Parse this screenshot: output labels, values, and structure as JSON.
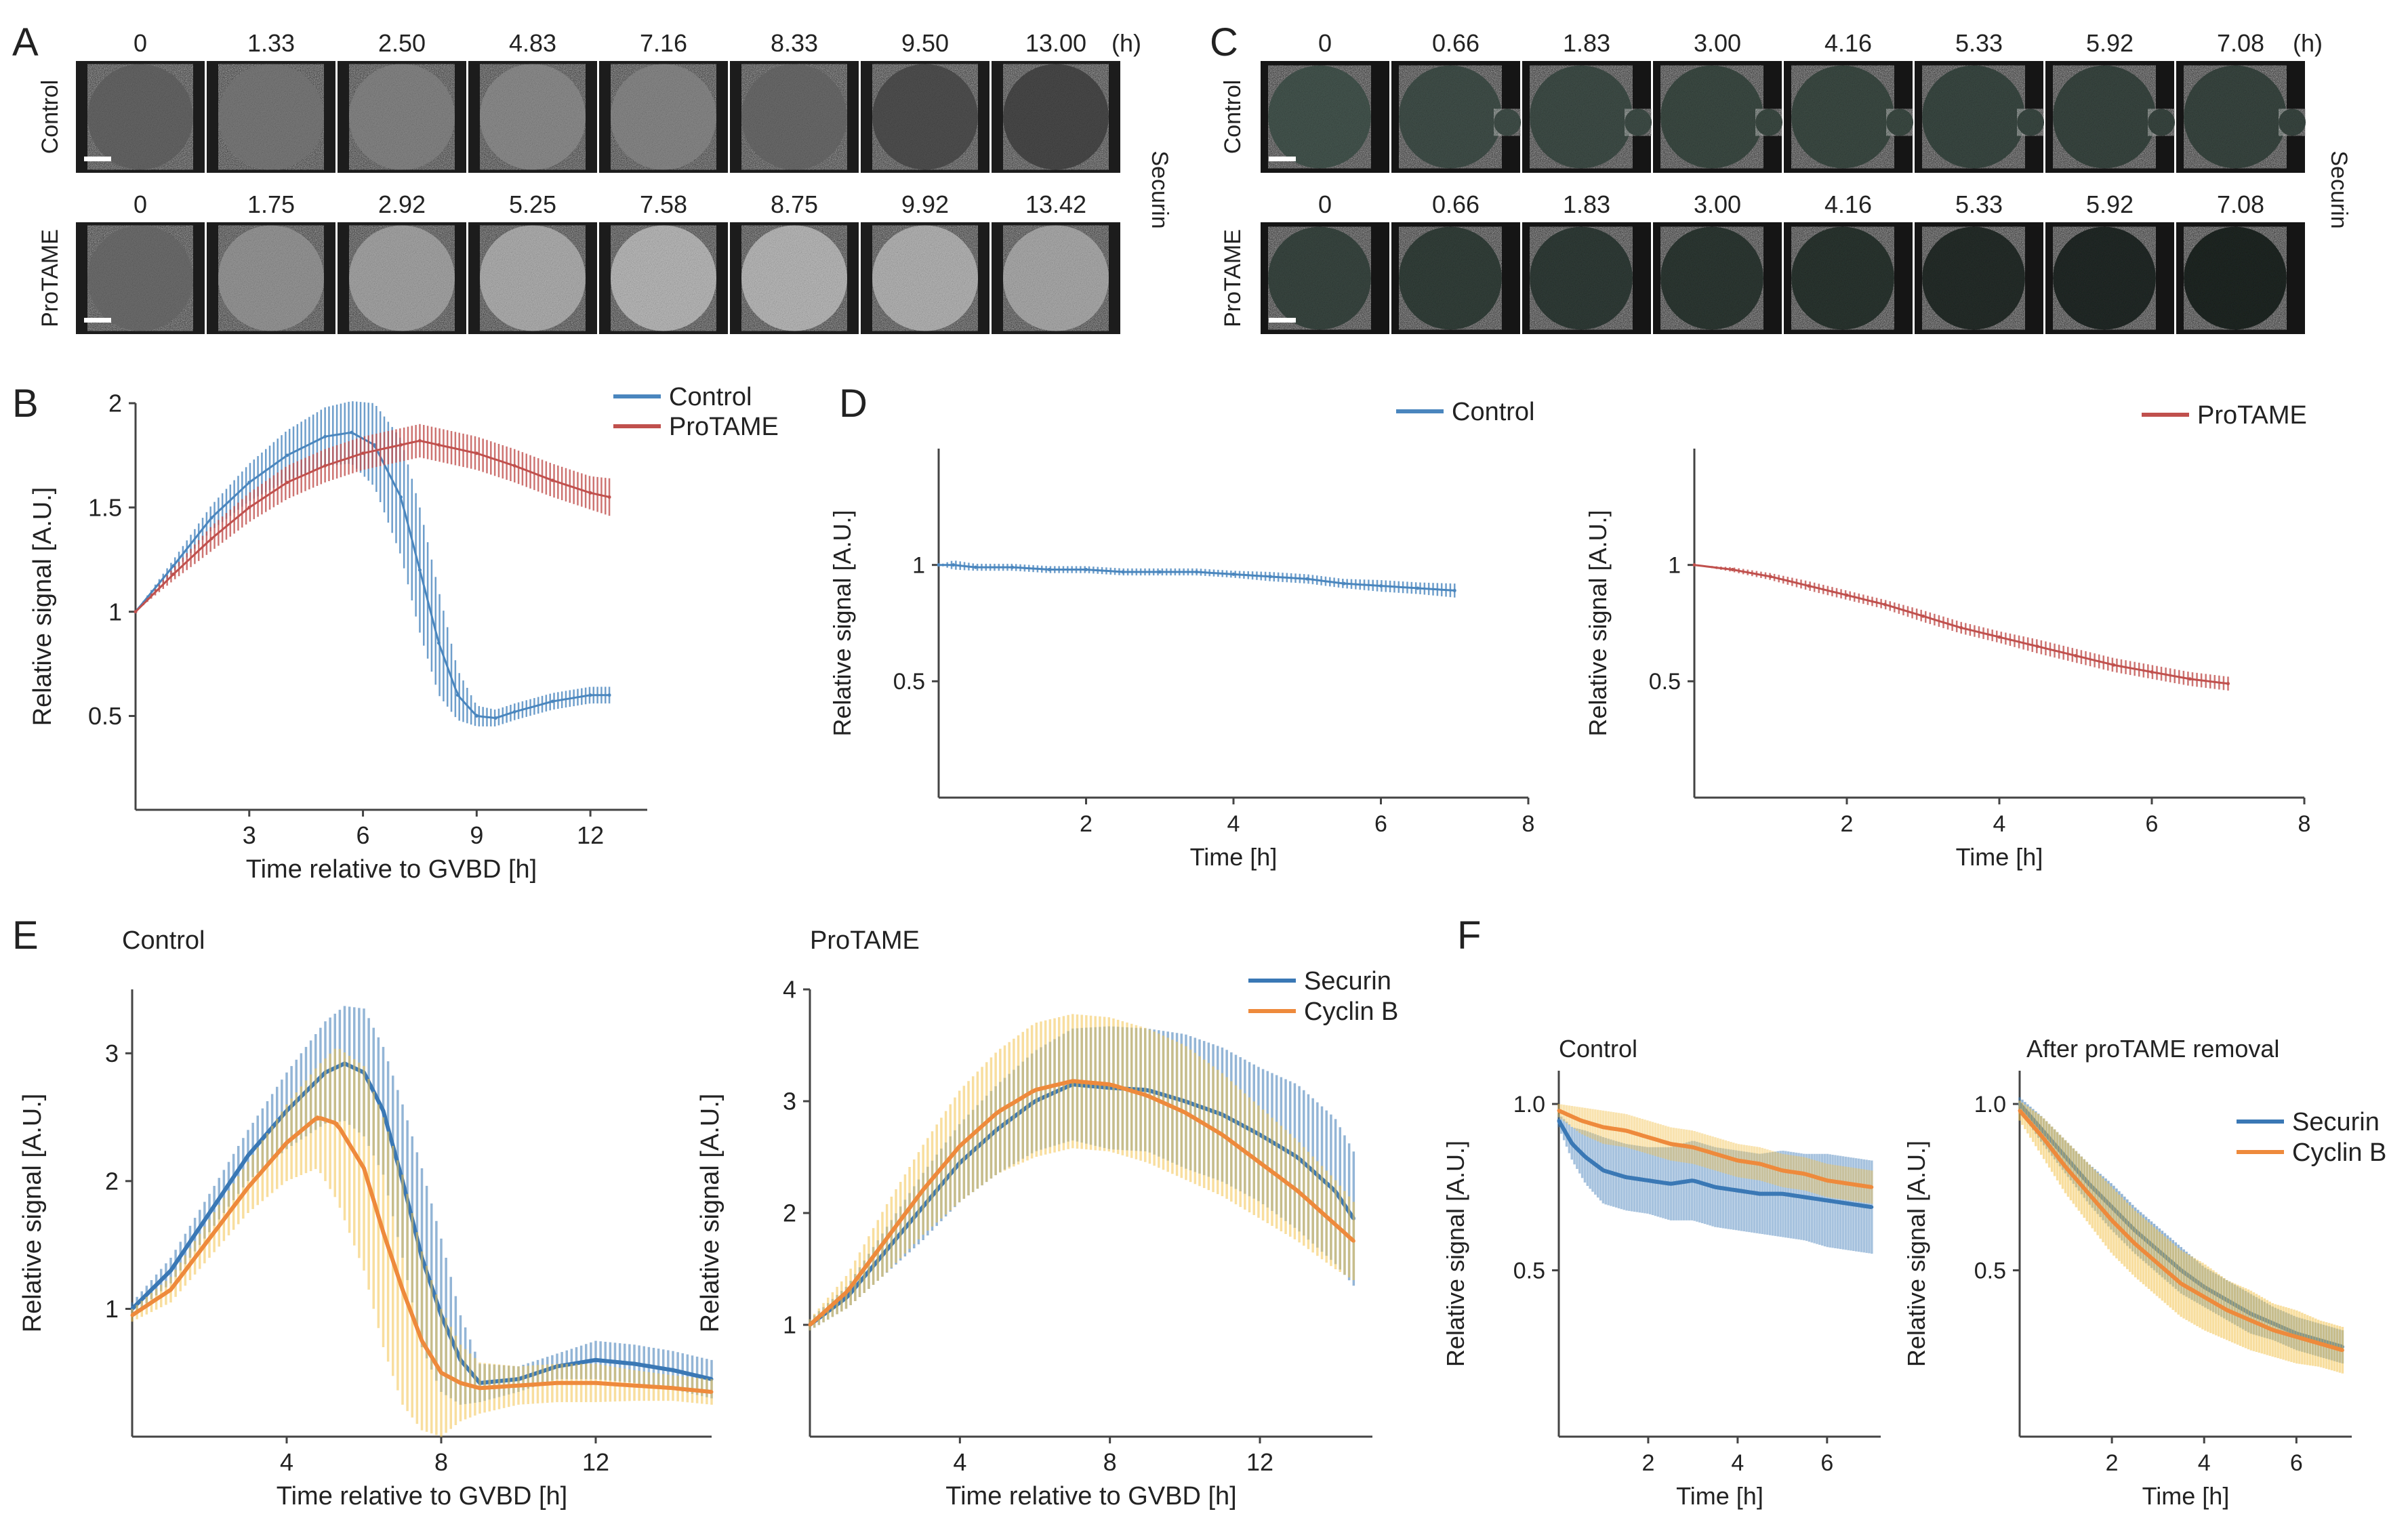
{
  "figure": {
    "panel_letters": [
      "A",
      "B",
      "C",
      "D",
      "E",
      "F"
    ],
    "colors": {
      "control": "#4a86be",
      "protame": "#c0504d",
      "securin": "#3a78b5",
      "cyclin": "#ee8a3c",
      "cyclin_band": "#f2c24e",
      "axis": "#444444",
      "cell_bg": "#1c1c1c",
      "cell_bg_c": "#151515"
    }
  },
  "panel_a": {
    "unit": "(h)",
    "side_label": "Securin",
    "rows": [
      {
        "label": "Control",
        "times": [
          "0",
          "1.33",
          "2.50",
          "4.83",
          "7.16",
          "8.33",
          "9.50",
          "13.00"
        ],
        "brightness": [
          0.42,
          0.5,
          0.55,
          0.58,
          0.56,
          0.44,
          0.33,
          0.3
        ]
      },
      {
        "label": "ProTAME",
        "times": [
          "0",
          "1.75",
          "2.92",
          "5.25",
          "7.58",
          "8.75",
          "9.92",
          "13.42"
        ],
        "brightness": [
          0.45,
          0.62,
          0.68,
          0.72,
          0.76,
          0.76,
          0.74,
          0.7
        ]
      }
    ]
  },
  "panel_c": {
    "unit": "(h)",
    "side_label": "Securin",
    "rows": [
      {
        "label": "Control",
        "times": [
          "0",
          "0.66",
          "1.83",
          "3.00",
          "4.16",
          "5.33",
          "5.92",
          "7.08"
        ],
        "brightness": [
          0.48,
          0.45,
          0.44,
          0.42,
          0.42,
          0.41,
          0.4,
          0.4
        ]
      },
      {
        "label": "ProTAME",
        "times": [
          "0",
          "0.66",
          "1.83",
          "3.00",
          "4.16",
          "5.33",
          "5.92",
          "7.08"
        ],
        "brightness": [
          0.4,
          0.36,
          0.34,
          0.32,
          0.3,
          0.26,
          0.24,
          0.22
        ]
      }
    ]
  },
  "chart_data": [
    {
      "panel": "B",
      "type": "line",
      "title": "",
      "xlabel": "Time relative to GVBD [h]",
      "ylabel": "Relative signal [A.U.]",
      "xlim": [
        0,
        13.5
      ],
      "ylim": [
        0.05,
        2
      ],
      "xticks": [
        3,
        6,
        9,
        12
      ],
      "yticks": [
        0.5,
        1,
        1.5,
        2
      ],
      "legend": "top-right",
      "series": [
        {
          "name": "Control",
          "color": "#4a86be",
          "x": [
            0,
            1,
            2,
            3,
            4,
            5,
            5.7,
            6.3,
            7,
            7.5,
            8,
            8.5,
            9,
            9.5,
            10,
            11,
            12,
            12.5
          ],
          "y": [
            1,
            1.22,
            1.45,
            1.62,
            1.75,
            1.84,
            1.86,
            1.8,
            1.55,
            1.2,
            0.85,
            0.6,
            0.5,
            0.49,
            0.52,
            0.57,
            0.6,
            0.6
          ],
          "err": [
            0,
            0.03,
            0.06,
            0.09,
            0.12,
            0.14,
            0.15,
            0.2,
            0.28,
            0.3,
            0.25,
            0.12,
            0.05,
            0.04,
            0.04,
            0.04,
            0.04,
            0.04
          ]
        },
        {
          "name": "ProTAME",
          "color": "#c0504d",
          "x": [
            0,
            1,
            2,
            3,
            4,
            5,
            6,
            7,
            7.5,
            8,
            9,
            10,
            11,
            12,
            12.5
          ],
          "y": [
            1,
            1.18,
            1.35,
            1.5,
            1.62,
            1.7,
            1.76,
            1.8,
            1.82,
            1.8,
            1.76,
            1.7,
            1.63,
            1.57,
            1.55
          ],
          "err": [
            0,
            0.03,
            0.06,
            0.07,
            0.08,
            0.08,
            0.08,
            0.08,
            0.08,
            0.08,
            0.08,
            0.08,
            0.08,
            0.08,
            0.09
          ]
        }
      ]
    },
    {
      "panel": "D-left",
      "type": "line",
      "title": "",
      "xlabel": "Time [h]",
      "ylabel": "Relative signal [A.U.]",
      "xlim": [
        0,
        8
      ],
      "ylim": [
        0,
        1.5
      ],
      "xticks": [
        2,
        4,
        6,
        8
      ],
      "yticks": [
        0.5,
        1
      ],
      "legend": "top",
      "series": [
        {
          "name": "Control",
          "color": "#4a86be",
          "x": [
            0,
            0.2,
            0.5,
            1,
            1.5,
            2,
            2.5,
            3,
            3.5,
            4,
            4.5,
            5,
            5.5,
            6,
            6.5,
            7
          ],
          "y": [
            1,
            1.0,
            0.99,
            0.99,
            0.98,
            0.98,
            0.97,
            0.97,
            0.97,
            0.96,
            0.95,
            0.94,
            0.92,
            0.91,
            0.9,
            0.89
          ],
          "err": [
            0,
            0.02,
            0.015,
            0.015,
            0.015,
            0.015,
            0.015,
            0.015,
            0.015,
            0.015,
            0.02,
            0.02,
            0.02,
            0.025,
            0.025,
            0.03
          ]
        }
      ]
    },
    {
      "panel": "D-right",
      "type": "line",
      "title": "",
      "xlabel": "Time [h]",
      "ylabel": "Relative signal [A.U.]",
      "xlim": [
        0,
        8
      ],
      "ylim": [
        0,
        1.5
      ],
      "xticks": [
        2,
        4,
        6,
        8
      ],
      "yticks": [
        0.5,
        1
      ],
      "legend": "top-right",
      "series": [
        {
          "name": "ProTAME",
          "color": "#c0504d",
          "x": [
            0,
            0.5,
            1,
            1.5,
            2,
            2.5,
            3,
            3.5,
            4,
            4.5,
            5,
            5.5,
            6,
            6.5,
            7
          ],
          "y": [
            1,
            0.98,
            0.95,
            0.91,
            0.87,
            0.83,
            0.78,
            0.73,
            0.69,
            0.65,
            0.61,
            0.57,
            0.54,
            0.51,
            0.49
          ],
          "err": [
            0,
            0.01,
            0.015,
            0.02,
            0.02,
            0.02,
            0.025,
            0.025,
            0.025,
            0.03,
            0.03,
            0.03,
            0.03,
            0.03,
            0.03
          ]
        }
      ]
    },
    {
      "panel": "E-left",
      "type": "line",
      "title": "Control",
      "xlabel": "Time relative to GVBD [h]",
      "ylabel": "Relative signal [A.U.]",
      "xlim": [
        0,
        15
      ],
      "ylim": [
        0,
        3.5
      ],
      "xticks": [
        4,
        8,
        12
      ],
      "yticks": [
        1,
        2,
        3
      ],
      "legend": "none",
      "series": [
        {
          "name": "Securin",
          "color": "#3a78b5",
          "band_color": "#3a78b5",
          "x": [
            0,
            1,
            2,
            3,
            4,
            5,
            5.5,
            6,
            6.5,
            7,
            7.5,
            8,
            8.5,
            9,
            10,
            11,
            12,
            13,
            14,
            15
          ],
          "y": [
            1,
            1.3,
            1.75,
            2.2,
            2.55,
            2.85,
            2.92,
            2.85,
            2.55,
            2.0,
            1.4,
            0.95,
            0.6,
            0.42,
            0.45,
            0.55,
            0.6,
            0.57,
            0.52,
            0.45
          ],
          "err": [
            0.05,
            0.1,
            0.15,
            0.2,
            0.3,
            0.4,
            0.45,
            0.5,
            0.5,
            0.6,
            0.7,
            0.6,
            0.35,
            0.15,
            0.1,
            0.1,
            0.15,
            0.15,
            0.15,
            0.15
          ]
        },
        {
          "name": "Cyclin B",
          "color": "#ee8a3c",
          "band_color": "#f2c24e",
          "x": [
            0,
            1,
            2,
            3,
            4,
            4.8,
            5.3,
            6,
            6.5,
            7,
            7.5,
            8,
            8.5,
            9,
            10,
            11,
            12,
            13,
            14,
            15
          ],
          "y": [
            0.95,
            1.15,
            1.55,
            1.95,
            2.3,
            2.5,
            2.45,
            2.1,
            1.6,
            1.15,
            0.75,
            0.5,
            0.42,
            0.38,
            0.4,
            0.42,
            0.42,
            0.4,
            0.38,
            0.35
          ],
          "err": [
            0.05,
            0.1,
            0.15,
            0.2,
            0.3,
            0.4,
            0.6,
            0.8,
            0.9,
            0.9,
            0.7,
            0.5,
            0.3,
            0.2,
            0.15,
            0.15,
            0.15,
            0.12,
            0.1,
            0.1
          ]
        }
      ]
    },
    {
      "panel": "E-right",
      "type": "line",
      "title": "ProTAME",
      "xlabel": "Time relative to GVBD [h]",
      "ylabel": "Relative signal [A.U.]",
      "xlim": [
        0,
        15
      ],
      "ylim": [
        0,
        4
      ],
      "xticks": [
        4,
        8,
        12
      ],
      "yticks": [
        1,
        2,
        3,
        4
      ],
      "legend": "top-right",
      "series": [
        {
          "name": "Securin",
          "color": "#3a78b5",
          "band_color": "#3a78b5",
          "x": [
            0,
            1,
            2,
            3,
            4,
            5,
            6,
            7,
            8,
            9,
            10,
            11,
            12,
            13,
            14,
            14.5
          ],
          "y": [
            1,
            1.25,
            1.65,
            2.05,
            2.45,
            2.75,
            3.0,
            3.15,
            3.12,
            3.1,
            3.0,
            2.88,
            2.7,
            2.5,
            2.2,
            1.95
          ],
          "err": [
            0.05,
            0.1,
            0.2,
            0.3,
            0.35,
            0.4,
            0.45,
            0.5,
            0.55,
            0.55,
            0.6,
            0.6,
            0.6,
            0.65,
            0.65,
            0.6
          ]
        },
        {
          "name": "Cyclin B",
          "color": "#ee8a3c",
          "band_color": "#f2c24e",
          "x": [
            0,
            1,
            2,
            3,
            4,
            5,
            6,
            7,
            8,
            9,
            10,
            11,
            12,
            13,
            14,
            14.5
          ],
          "y": [
            1,
            1.3,
            1.75,
            2.2,
            2.6,
            2.9,
            3.1,
            3.18,
            3.15,
            3.05,
            2.9,
            2.7,
            2.45,
            2.2,
            1.9,
            1.75
          ],
          "err": [
            0.05,
            0.15,
            0.3,
            0.4,
            0.5,
            0.55,
            0.6,
            0.6,
            0.6,
            0.6,
            0.6,
            0.55,
            0.5,
            0.45,
            0.4,
            0.35
          ]
        }
      ]
    },
    {
      "panel": "F-left",
      "type": "line",
      "title": "Control",
      "xlabel": "Time [h]",
      "ylabel": "Relative signal [A.U.]",
      "xlim": [
        0,
        7.2
      ],
      "ylim": [
        0,
        1.1
      ],
      "xticks": [
        2,
        4,
        6
      ],
      "yticks": [
        0.5,
        1.0
      ],
      "ytick_labels": [
        "0.5",
        "1.0"
      ],
      "legend": "none",
      "series": [
        {
          "name": "Securin",
          "color": "#3a78b5",
          "band_color": "#3a78b5",
          "x": [
            0,
            0.3,
            0.6,
            1,
            1.5,
            2,
            2.5,
            3,
            3.5,
            4,
            4.5,
            5,
            5.5,
            6,
            6.5,
            7
          ],
          "y": [
            0.95,
            0.88,
            0.84,
            0.8,
            0.78,
            0.77,
            0.76,
            0.77,
            0.75,
            0.74,
            0.73,
            0.73,
            0.72,
            0.71,
            0.7,
            0.69
          ],
          "err": [
            0.02,
            0.05,
            0.08,
            0.1,
            0.1,
            0.1,
            0.11,
            0.12,
            0.12,
            0.12,
            0.12,
            0.13,
            0.13,
            0.14,
            0.14,
            0.14
          ]
        },
        {
          "name": "Cyclin B",
          "color": "#ee8a3c",
          "band_color": "#f2c24e",
          "x": [
            0,
            0.5,
            1,
            1.5,
            2,
            2.5,
            3,
            3.5,
            4,
            4.5,
            5,
            5.5,
            6,
            6.5,
            7
          ],
          "y": [
            0.98,
            0.95,
            0.93,
            0.92,
            0.9,
            0.88,
            0.87,
            0.85,
            0.83,
            0.82,
            0.8,
            0.79,
            0.77,
            0.76,
            0.75
          ],
          "err": [
            0.02,
            0.04,
            0.05,
            0.05,
            0.05,
            0.05,
            0.05,
            0.05,
            0.05,
            0.05,
            0.05,
            0.05,
            0.05,
            0.05,
            0.05
          ]
        }
      ]
    },
    {
      "panel": "F-right",
      "type": "line",
      "title": "After proTAME removal",
      "xlabel": "Time [h]",
      "ylabel": "Relative signal [A.U.]",
      "xlim": [
        0,
        7.2
      ],
      "ylim": [
        0,
        1.1
      ],
      "xticks": [
        2,
        4,
        6
      ],
      "yticks": [
        0.5,
        1.0
      ],
      "ytick_labels": [
        "0.5",
        "1.0"
      ],
      "legend": "top-right",
      "series": [
        {
          "name": "Securin",
          "color": "#3a78b5",
          "band_color": "#3a78b5",
          "x": [
            0,
            0.5,
            1,
            1.5,
            2,
            2.5,
            3,
            3.5,
            4,
            4.5,
            5,
            5.5,
            6,
            6.5,
            7
          ],
          "y": [
            1,
            0.92,
            0.84,
            0.76,
            0.69,
            0.62,
            0.56,
            0.5,
            0.45,
            0.41,
            0.37,
            0.34,
            0.31,
            0.29,
            0.27
          ],
          "err": [
            0.02,
            0.04,
            0.05,
            0.06,
            0.07,
            0.07,
            0.07,
            0.07,
            0.06,
            0.06,
            0.06,
            0.05,
            0.05,
            0.05,
            0.05
          ]
        },
        {
          "name": "Cyclin B",
          "color": "#ee8a3c",
          "band_color": "#f2c24e",
          "x": [
            0,
            0.5,
            1,
            1.5,
            2,
            2.5,
            3,
            3.5,
            4,
            4.5,
            5,
            5.5,
            6,
            6.5,
            7
          ],
          "y": [
            0.98,
            0.9,
            0.81,
            0.73,
            0.65,
            0.58,
            0.52,
            0.46,
            0.42,
            0.38,
            0.35,
            0.32,
            0.3,
            0.28,
            0.26
          ],
          "err": [
            0.03,
            0.06,
            0.08,
            0.09,
            0.1,
            0.1,
            0.1,
            0.1,
            0.1,
            0.09,
            0.09,
            0.08,
            0.08,
            0.07,
            0.07
          ]
        }
      ]
    }
  ]
}
